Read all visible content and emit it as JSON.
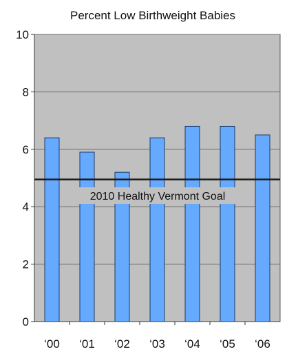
{
  "chart_data": {
    "type": "bar",
    "title": "Percent Low Birthweight Babies",
    "xlabel": "",
    "ylabel": "",
    "categories": [
      "‘00",
      "‘01",
      "‘02",
      "‘03",
      "‘04",
      "‘05",
      "‘06"
    ],
    "values": [
      6.4,
      5.9,
      5.2,
      6.4,
      6.8,
      6.8,
      6.5
    ],
    "ylim": [
      0,
      10
    ],
    "yticks": [
      "0",
      "2",
      "4",
      "6",
      "8",
      "10"
    ],
    "grid": true,
    "goal": {
      "value": 4.95,
      "label": "2010 Healthy Vermont Goal"
    },
    "colors": {
      "bar": "#66aaff",
      "bar_border": "#1a3a66",
      "plot_background": "#c0c0c0",
      "gridline": "#6a6a6a",
      "goal_line": "#1a1a1a",
      "goal_label_background": "#c0c0c0"
    }
  }
}
